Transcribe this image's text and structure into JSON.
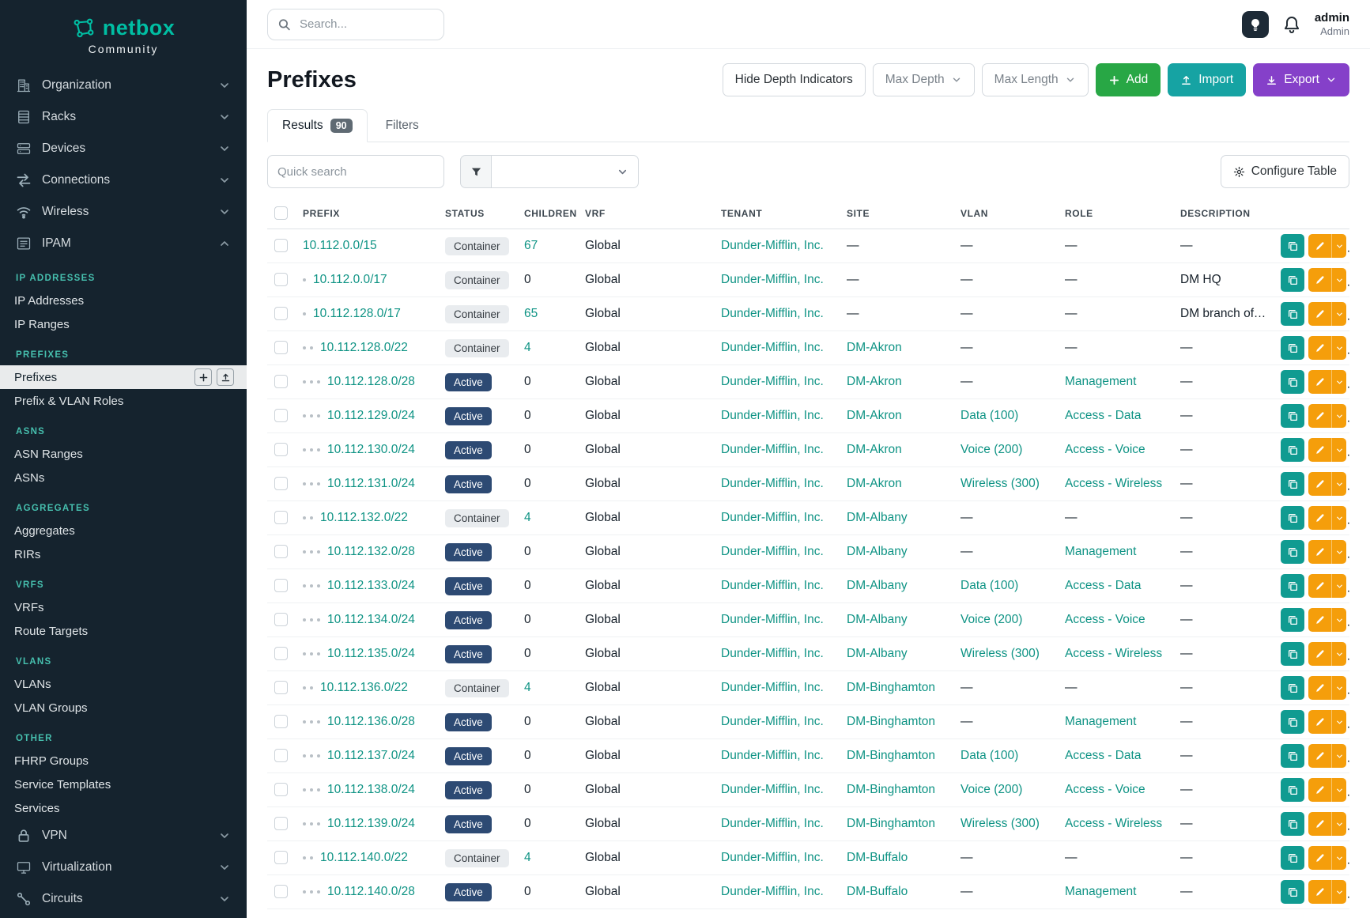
{
  "colors": {
    "sidebar_bg": "#15232e",
    "brand_teal": "#00bea3",
    "section_heading_teal": "#46bfae",
    "link_teal": "#0e9384",
    "active_badge_bg": "#2d4a73",
    "container_badge_bg": "#e9ecef",
    "add_green": "#28a745",
    "import_teal": "#16a3a3",
    "export_purple": "#8540c9",
    "edit_orange": "#f59e0b",
    "clone_teal": "#109b91"
  },
  "brand": {
    "name": "netbox",
    "subtitle": "Community"
  },
  "topbar": {
    "search_placeholder": "Search...",
    "user_name": "admin",
    "user_role": "Admin"
  },
  "sidebar": {
    "top_items": [
      {
        "label": "Organization",
        "icon": "organization",
        "expanded": false
      },
      {
        "label": "Racks",
        "icon": "racks",
        "expanded": false
      },
      {
        "label": "Devices",
        "icon": "devices",
        "expanded": false
      },
      {
        "label": "Connections",
        "icon": "connections",
        "expanded": false
      },
      {
        "label": "Wireless",
        "icon": "wireless",
        "expanded": false
      },
      {
        "label": "IPAM",
        "icon": "ipam",
        "expanded": true
      }
    ],
    "sections": [
      {
        "heading": "IP Addresses",
        "items": [
          {
            "label": "IP Addresses"
          },
          {
            "label": "IP Ranges"
          }
        ]
      },
      {
        "heading": "Prefixes",
        "items": [
          {
            "label": "Prefixes",
            "active": true
          },
          {
            "label": "Prefix & VLAN Roles"
          }
        ]
      },
      {
        "heading": "ASNS",
        "items": [
          {
            "label": "ASN Ranges"
          },
          {
            "label": "ASNs"
          }
        ]
      },
      {
        "heading": "Aggregates",
        "items": [
          {
            "label": "Aggregates"
          },
          {
            "label": "RIRs"
          }
        ]
      },
      {
        "heading": "VRFS",
        "items": [
          {
            "label": "VRFs"
          },
          {
            "label": "Route Targets"
          }
        ]
      },
      {
        "heading": "VLANS",
        "items": [
          {
            "label": "VLANs"
          },
          {
            "label": "VLAN Groups"
          }
        ]
      },
      {
        "heading": "Other",
        "items": [
          {
            "label": "FHRP Groups"
          },
          {
            "label": "Service Templates"
          },
          {
            "label": "Services"
          }
        ]
      }
    ],
    "bottom_items": [
      {
        "label": "VPN",
        "icon": "vpn",
        "expanded": false
      },
      {
        "label": "Virtualization",
        "icon": "virtualization",
        "expanded": false
      },
      {
        "label": "Circuits",
        "icon": "circuits",
        "expanded": false
      }
    ]
  },
  "page": {
    "title": "Prefixes",
    "toolbar": {
      "hide_depth": "Hide Depth Indicators",
      "max_depth": "Max Depth",
      "max_length": "Max Length",
      "add": "Add",
      "import": "Import",
      "export": "Export"
    },
    "tabs": [
      {
        "label": "Results",
        "badge": "90"
      },
      {
        "label": "Filters"
      }
    ],
    "controls": {
      "quick_search_placeholder": "Quick search",
      "configure_table": "Configure Table"
    },
    "table": {
      "columns": [
        "Prefix",
        "Status",
        "Children",
        "VRF",
        "Tenant",
        "Site",
        "VLAN",
        "Role",
        "Description"
      ],
      "rows": [
        {
          "depth": 0,
          "prefix": "10.112.0.0/15",
          "status": "Container",
          "children": "67",
          "vrf": "Global",
          "tenant": "Dunder-Mifflin, Inc.",
          "site": "—",
          "vlan": "—",
          "role": "—",
          "description": "—"
        },
        {
          "depth": 1,
          "prefix": "10.112.0.0/17",
          "status": "Container",
          "children": "0",
          "vrf": "Global",
          "tenant": "Dunder-Mifflin, Inc.",
          "site": "—",
          "vlan": "—",
          "role": "—",
          "description": "DM HQ"
        },
        {
          "depth": 1,
          "prefix": "10.112.128.0/17",
          "status": "Container",
          "children": "65",
          "vrf": "Global",
          "tenant": "Dunder-Mifflin, Inc.",
          "site": "—",
          "vlan": "—",
          "role": "—",
          "description": "DM branch offices"
        },
        {
          "depth": 2,
          "prefix": "10.112.128.0/22",
          "status": "Container",
          "children": "4",
          "vrf": "Global",
          "tenant": "Dunder-Mifflin, Inc.",
          "site": "DM-Akron",
          "vlan": "—",
          "role": "—",
          "description": "—"
        },
        {
          "depth": 3,
          "prefix": "10.112.128.0/28",
          "status": "Active",
          "children": "0",
          "vrf": "Global",
          "tenant": "Dunder-Mifflin, Inc.",
          "site": "DM-Akron",
          "vlan": "—",
          "role": "Management",
          "description": "—"
        },
        {
          "depth": 3,
          "prefix": "10.112.129.0/24",
          "status": "Active",
          "children": "0",
          "vrf": "Global",
          "tenant": "Dunder-Mifflin, Inc.",
          "site": "DM-Akron",
          "vlan": "Data (100)",
          "role": "Access - Data",
          "description": "—"
        },
        {
          "depth": 3,
          "prefix": "10.112.130.0/24",
          "status": "Active",
          "children": "0",
          "vrf": "Global",
          "tenant": "Dunder-Mifflin, Inc.",
          "site": "DM-Akron",
          "vlan": "Voice (200)",
          "role": "Access - Voice",
          "description": "—"
        },
        {
          "depth": 3,
          "prefix": "10.112.131.0/24",
          "status": "Active",
          "children": "0",
          "vrf": "Global",
          "tenant": "Dunder-Mifflin, Inc.",
          "site": "DM-Akron",
          "vlan": "Wireless (300)",
          "role": "Access - Wireless",
          "description": "—"
        },
        {
          "depth": 2,
          "prefix": "10.112.132.0/22",
          "status": "Container",
          "children": "4",
          "vrf": "Global",
          "tenant": "Dunder-Mifflin, Inc.",
          "site": "DM-Albany",
          "vlan": "—",
          "role": "—",
          "description": "—"
        },
        {
          "depth": 3,
          "prefix": "10.112.132.0/28",
          "status": "Active",
          "children": "0",
          "vrf": "Global",
          "tenant": "Dunder-Mifflin, Inc.",
          "site": "DM-Albany",
          "vlan": "—",
          "role": "Management",
          "description": "—"
        },
        {
          "depth": 3,
          "prefix": "10.112.133.0/24",
          "status": "Active",
          "children": "0",
          "vrf": "Global",
          "tenant": "Dunder-Mifflin, Inc.",
          "site": "DM-Albany",
          "vlan": "Data (100)",
          "role": "Access - Data",
          "description": "—"
        },
        {
          "depth": 3,
          "prefix": "10.112.134.0/24",
          "status": "Active",
          "children": "0",
          "vrf": "Global",
          "tenant": "Dunder-Mifflin, Inc.",
          "site": "DM-Albany",
          "vlan": "Voice (200)",
          "role": "Access - Voice",
          "description": "—"
        },
        {
          "depth": 3,
          "prefix": "10.112.135.0/24",
          "status": "Active",
          "children": "0",
          "vrf": "Global",
          "tenant": "Dunder-Mifflin, Inc.",
          "site": "DM-Albany",
          "vlan": "Wireless (300)",
          "role": "Access - Wireless",
          "description": "—"
        },
        {
          "depth": 2,
          "prefix": "10.112.136.0/22",
          "status": "Container",
          "children": "4",
          "vrf": "Global",
          "tenant": "Dunder-Mifflin, Inc.",
          "site": "DM-Binghamton",
          "vlan": "—",
          "role": "—",
          "description": "—"
        },
        {
          "depth": 3,
          "prefix": "10.112.136.0/28",
          "status": "Active",
          "children": "0",
          "vrf": "Global",
          "tenant": "Dunder-Mifflin, Inc.",
          "site": "DM-Binghamton",
          "vlan": "—",
          "role": "Management",
          "description": "—"
        },
        {
          "depth": 3,
          "prefix": "10.112.137.0/24",
          "status": "Active",
          "children": "0",
          "vrf": "Global",
          "tenant": "Dunder-Mifflin, Inc.",
          "site": "DM-Binghamton",
          "vlan": "Data (100)",
          "role": "Access - Data",
          "description": "—"
        },
        {
          "depth": 3,
          "prefix": "10.112.138.0/24",
          "status": "Active",
          "children": "0",
          "vrf": "Global",
          "tenant": "Dunder-Mifflin, Inc.",
          "site": "DM-Binghamton",
          "vlan": "Voice (200)",
          "role": "Access - Voice",
          "description": "—"
        },
        {
          "depth": 3,
          "prefix": "10.112.139.0/24",
          "status": "Active",
          "children": "0",
          "vrf": "Global",
          "tenant": "Dunder-Mifflin, Inc.",
          "site": "DM-Binghamton",
          "vlan": "Wireless (300)",
          "role": "Access - Wireless",
          "description": "—"
        },
        {
          "depth": 2,
          "prefix": "10.112.140.0/22",
          "status": "Container",
          "children": "4",
          "vrf": "Global",
          "tenant": "Dunder-Mifflin, Inc.",
          "site": "DM-Buffalo",
          "vlan": "—",
          "role": "—",
          "description": "—"
        },
        {
          "depth": 3,
          "prefix": "10.112.140.0/28",
          "status": "Active",
          "children": "0",
          "vrf": "Global",
          "tenant": "Dunder-Mifflin, Inc.",
          "site": "DM-Buffalo",
          "vlan": "—",
          "role": "Management",
          "description": "—"
        }
      ]
    }
  }
}
